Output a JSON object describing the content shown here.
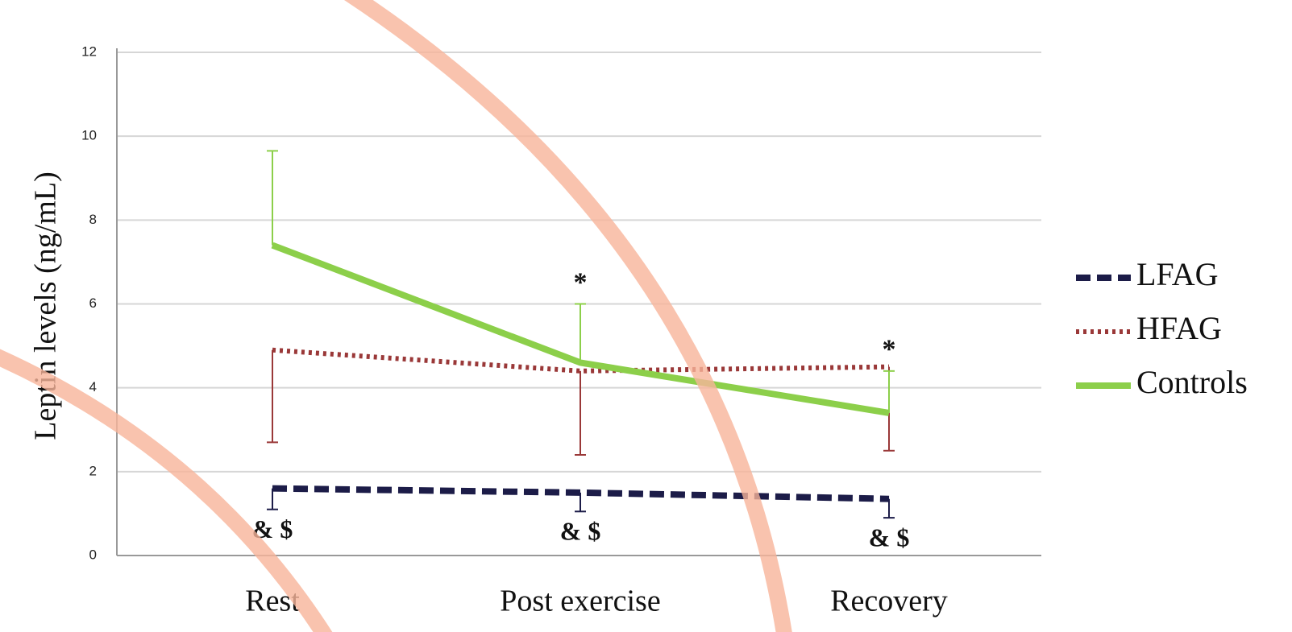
{
  "chart_data": {
    "type": "line",
    "y_label": "Leptin levels (ng/mL)",
    "categories": [
      "Rest",
      "Post exercise",
      "Recovery"
    ],
    "series": [
      {
        "name": "LFAG",
        "color": "#1c1c48",
        "dash": "dash",
        "error_side": "down",
        "values": [
          1.6,
          1.5,
          1.35
        ],
        "errors": [
          0.5,
          0.45,
          0.45
        ]
      },
      {
        "name": "HFAG",
        "color": "#9a3838",
        "dash": "dot",
        "error_side": "down",
        "values": [
          4.9,
          4.4,
          4.5
        ],
        "errors": [
          2.2,
          2.0,
          2.0
        ]
      },
      {
        "name": "Controls",
        "color": "#8ccf4a",
        "dash": "solid",
        "error_side": "up",
        "values": [
          7.4,
          4.6,
          3.4
        ],
        "errors": [
          2.25,
          1.4,
          1.0
        ]
      }
    ],
    "annotations": [
      {
        "text": "*",
        "series": "Controls",
        "category": "Post exercise",
        "position": "above"
      },
      {
        "text": "*",
        "series": "Controls",
        "category": "Recovery",
        "position": "above"
      },
      {
        "text": "& $",
        "series": "LFAG",
        "category": "Rest",
        "position": "below"
      },
      {
        "text": "& $",
        "series": "LFAG",
        "category": "Post exercise",
        "position": "below"
      },
      {
        "text": "& $",
        "series": "LFAG",
        "category": "Recovery",
        "position": "below"
      }
    ],
    "ylim": [
      0,
      12
    ],
    "yticks": [
      0,
      2,
      4,
      6,
      8,
      10,
      12
    ],
    "grid": true,
    "legend": "right"
  }
}
